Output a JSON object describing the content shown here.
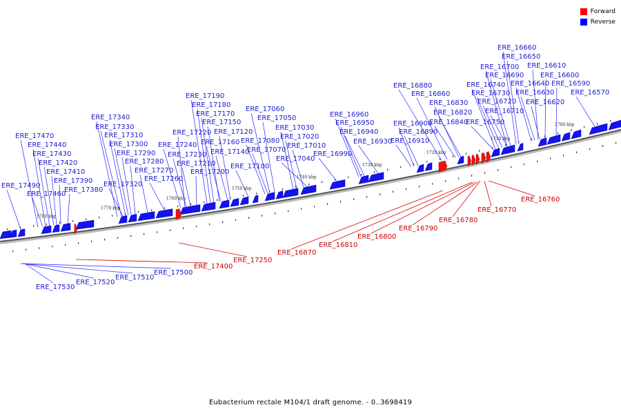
{
  "legend": {
    "forward_label": "Forward",
    "forward_color": "#ff0000",
    "reverse_label": "Reverse",
    "reverse_color": "#0000ff"
  },
  "caption": "Eubacterium rectale M104/1 draft genome. - 0..3698419",
  "ticks": [
    "1780 kbp",
    "1770 kbp",
    "1760 kbp",
    "1750 kbp",
    "1740 kbp",
    "1730 kbp",
    "1720 kbp",
    "1710 kbp",
    "1700 kbp"
  ],
  "reverse_genes": [
    "ERE_16660",
    "ERE_16650",
    "ERE_16610",
    "ERE_16600",
    "ERE_16590",
    "ERE_16570",
    "ERE_16700",
    "ERE_16690",
    "ERE_16640",
    "ERE_16630",
    "ERE_16620",
    "ERE_16740",
    "ERE_16730",
    "ERE_16720",
    "ERE_16710",
    "ERE_16750",
    "ERE_16880",
    "ERE_16860",
    "ERE_16830",
    "ERE_16820",
    "ERE_16840",
    "ERE_16900",
    "ERE_16890",
    "ERE_16910",
    "ERE_16960",
    "ERE_16950",
    "ERE_16940",
    "ERE_16930",
    "ERE_16990",
    "ERE_17060",
    "ERE_17050",
    "ERE_17030",
    "ERE_17020",
    "ERE_17010",
    "ERE_17040",
    "ERE_17080",
    "ERE_17070",
    "ERE_17100",
    "ERE_17190",
    "ERE_17180",
    "ERE_17170",
    "ERE_17150",
    "ERE_17120",
    "ERE_17160",
    "ERE_17140",
    "ERE_17220",
    "ERE_17240",
    "ERE_17230",
    "ERE_17210",
    "ERE_17200",
    "ERE_17340",
    "ERE_17330",
    "ERE_17310",
    "ERE_17300",
    "ERE_17290",
    "ERE_17280",
    "ERE_17270",
    "ERE_17260",
    "ERE_17320",
    "ERE_17470",
    "ERE_17440",
    "ERE_17430",
    "ERE_17420",
    "ERE_17410",
    "ERE_17390",
    "ERE_17380",
    "ERE_17490",
    "ERE_17460"
  ],
  "forward_genes": [
    "ERE_16760",
    "ERE_16770",
    "ERE_16780",
    "ERE_16790",
    "ERE_16800",
    "ERE_16810",
    "ERE_16870",
    "ERE_17250",
    "ERE_17400"
  ],
  "lower_reverse_genes": [
    "ERE_17500",
    "ERE_17510",
    "ERE_17520",
    "ERE_17530"
  ]
}
